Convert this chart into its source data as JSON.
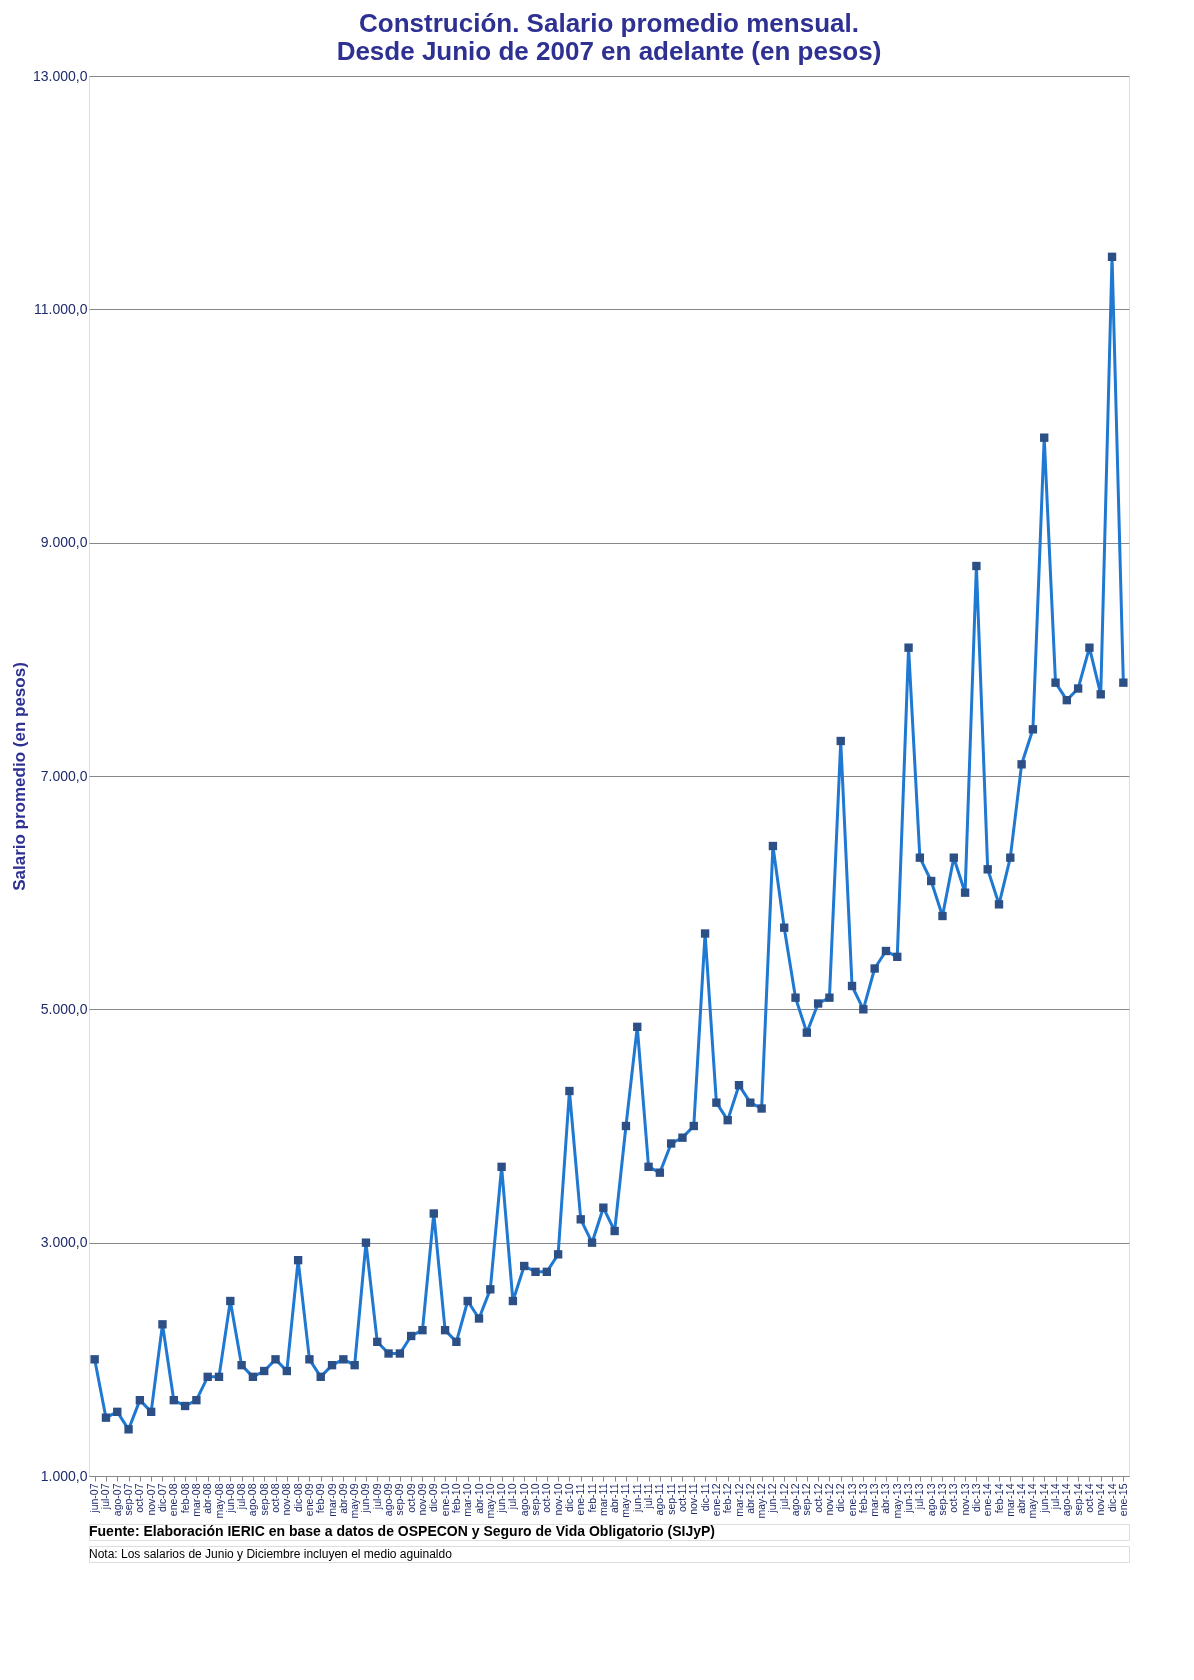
{
  "chart_data": {
    "type": "line",
    "title": [
      "Construción. Salario promedio mensual.",
      "Desde Junio de 2007 en adelante (en pesos)"
    ],
    "ylabel": "Salario promedio (en pesos)",
    "categories": [
      "jun-07",
      "jul-07",
      "ago-07",
      "sep-07",
      "oct-07",
      "nov-07",
      "dic-07",
      "ene-08",
      "feb-08",
      "mar-08",
      "abr-08",
      "may-08",
      "jun-08",
      "jul-08",
      "ago-08",
      "sep-08",
      "oct-08",
      "nov-08",
      "dic-08",
      "ene-09",
      "feb-09",
      "mar-09",
      "abr-09",
      "may-09",
      "jun-09",
      "jul-09",
      "ago-09",
      "sep-09",
      "oct-09",
      "nov-09",
      "dic-09",
      "ene-10",
      "feb-10",
      "mar-10",
      "abr-10",
      "may-10",
      "jun-10",
      "jul-10",
      "ago-10",
      "sep-10",
      "oct-10",
      "nov-10",
      "dic-10",
      "ene-11",
      "feb-11",
      "mar-11",
      "abr-11",
      "may-11",
      "jun-11",
      "jul-11",
      "ago-11",
      "sep-11",
      "oct-11",
      "nov-11",
      "dic-11",
      "ene-12",
      "feb-12",
      "mar-12",
      "abr-12",
      "may-12",
      "jun-12",
      "jul-12",
      "ago-12",
      "sep-12",
      "oct-12",
      "nov-12",
      "dic-12",
      "ene-13",
      "feb-13",
      "mar-13",
      "abr-13",
      "may-13",
      "jun-13",
      "jul-13",
      "ago-13",
      "sep-13",
      "oct-13",
      "nov-13",
      "dic-13",
      "ene-14",
      "feb-14",
      "mar-14",
      "abr-14",
      "may-14",
      "jun-14",
      "jul-14",
      "ago-14",
      "sep-14",
      "oct-14",
      "nov-14",
      "dic-14",
      "ene-15"
    ],
    "series": [
      {
        "color": "#1f78d1",
        "values": [
          2000,
          1500,
          1550,
          1400,
          1650,
          1550,
          2300,
          1650,
          1600,
          1650,
          1850,
          1850,
          2500,
          1950,
          1850,
          1900,
          2000,
          1900,
          2850,
          2000,
          1850,
          1950,
          2000,
          1950,
          3000,
          2150,
          2050,
          2050,
          2200,
          2250,
          3250,
          2250,
          2150,
          2500,
          2350,
          2600,
          3650,
          2500,
          2800,
          2750,
          2750,
          2900,
          4300,
          3200,
          3000,
          3300,
          3100,
          4000,
          4850,
          3650,
          3600,
          3850,
          3900,
          4000,
          5650,
          4200,
          4050,
          4350,
          4200,
          4150,
          6400,
          5700,
          5100,
          4800,
          5050,
          5100,
          7300,
          5200,
          5000,
          5350,
          5500,
          5450,
          8100,
          6300,
          6100,
          5800,
          6300,
          6000,
          8800,
          6200,
          5900,
          6300,
          7100,
          7400,
          9900,
          7800,
          7650,
          7750,
          8100,
          7700,
          11450,
          7800
        ]
      }
    ],
    "ylim": [
      1000,
      13000
    ],
    "yticks": [
      {
        "value": 1000,
        "label": "1.000,0"
      },
      {
        "value": 3000,
        "label": "3.000,0"
      },
      {
        "value": 5000,
        "label": "5.000,0"
      },
      {
        "value": 7000,
        "label": "7.000,0"
      },
      {
        "value": 9000,
        "label": "9.000,0"
      },
      {
        "value": 11000,
        "label": "11.000,0"
      },
      {
        "value": 13000,
        "label": "13.000,0"
      }
    ],
    "grid": "y",
    "marker": "square",
    "line_style": "solid",
    "annotations": [
      "Fuente: Elaboración IERIC en base a datos de OSPECON y Seguro de Vida Obligatorio (SIJyP)",
      "Nota: Los salarios de Junio y Diciembre incluyen el medio aguinaldo"
    ]
  }
}
